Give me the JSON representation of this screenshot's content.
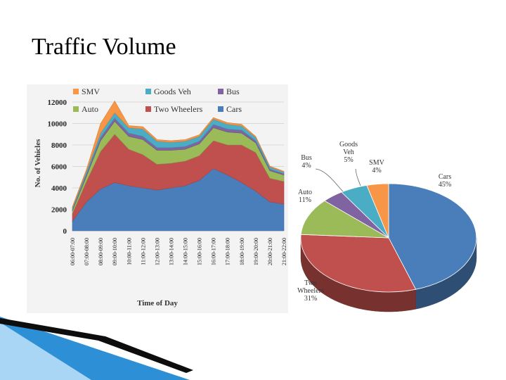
{
  "slide": {
    "title": "Traffic Volume"
  },
  "chart_data": [
    {
      "type": "area",
      "stacked": true,
      "xlabel": "Time of Day",
      "ylabel": "No. of Vehicles",
      "ylim": [
        0,
        12000
      ],
      "yticks": [
        0,
        2000,
        4000,
        6000,
        8000,
        10000,
        12000
      ],
      "grid": true,
      "legend": "top",
      "categories": [
        "06:00-07:00",
        "07:00-08:00",
        "08:00-09:00",
        "09:00-10:00",
        "10:00-11:00",
        "11:00-12:00",
        "12:00-13:00",
        "13:00-14:00",
        "14:00-15:00",
        "15:00-16:00",
        "16:00-17:00",
        "17:00-18:00",
        "18:00-19:00",
        "19:00-20:00",
        "20:00-21:00",
        "21:00-22:00"
      ],
      "series": [
        {
          "name": "Cars",
          "color": "#4a7ebb",
          "values": [
            900,
            2700,
            3900,
            4500,
            4200,
            4000,
            3800,
            4000,
            4200,
            4700,
            5800,
            5200,
            4500,
            3700,
            2700,
            2500
          ]
        },
        {
          "name": "Two Wheelers",
          "color": "#c0504d",
          "values": [
            700,
            1900,
            3500,
            4500,
            3400,
            3100,
            2400,
            2300,
            2300,
            2300,
            2600,
            2800,
            3500,
            3600,
            2200,
            2100
          ]
        },
        {
          "name": "Auto",
          "color": "#9bbb59",
          "values": [
            250,
            500,
            1000,
            1200,
            1200,
            1400,
            1300,
            1200,
            1100,
            1100,
            1200,
            1200,
            1100,
            900,
            700,
            600
          ]
        },
        {
          "name": "Bus",
          "color": "#8064a2",
          "values": [
            100,
            180,
            300,
            300,
            300,
            300,
            250,
            250,
            250,
            250,
            300,
            280,
            280,
            200,
            150,
            120
          ]
        },
        {
          "name": "Goods Veh",
          "color": "#4bacc6",
          "values": [
            150,
            250,
            400,
            500,
            500,
            700,
            600,
            500,
            500,
            450,
            500,
            450,
            400,
            300,
            200,
            150
          ]
        },
        {
          "name": "SMV",
          "color": "#f79646",
          "values": [
            150,
            200,
            900,
            1100,
            200,
            200,
            150,
            150,
            150,
            150,
            150,
            150,
            150,
            100,
            80,
            80
          ]
        }
      ]
    },
    {
      "type": "pie",
      "slices": [
        {
          "label": "Cars",
          "pct_label": "45%",
          "value": 45,
          "color": "#4a7ebb"
        },
        {
          "label": "Two Wheelers",
          "pct_label": "31%",
          "value": 31,
          "color": "#c0504d"
        },
        {
          "label": "Auto",
          "pct_label": "11%",
          "value": 11,
          "color": "#9bbb59"
        },
        {
          "label": "Bus",
          "pct_label": "4%",
          "value": 4,
          "color": "#8064a2"
        },
        {
          "label": "Goods Veh",
          "pct_label": "5%",
          "value": 5,
          "color": "#4bacc6"
        },
        {
          "label": "SMV",
          "pct_label": "4%",
          "value": 4,
          "color": "#f79646"
        }
      ]
    }
  ],
  "theme": {
    "wave_dark": "#0d0d0d",
    "wave_blue": "#2d8fd5",
    "wave_light": "#a9d6f5"
  }
}
